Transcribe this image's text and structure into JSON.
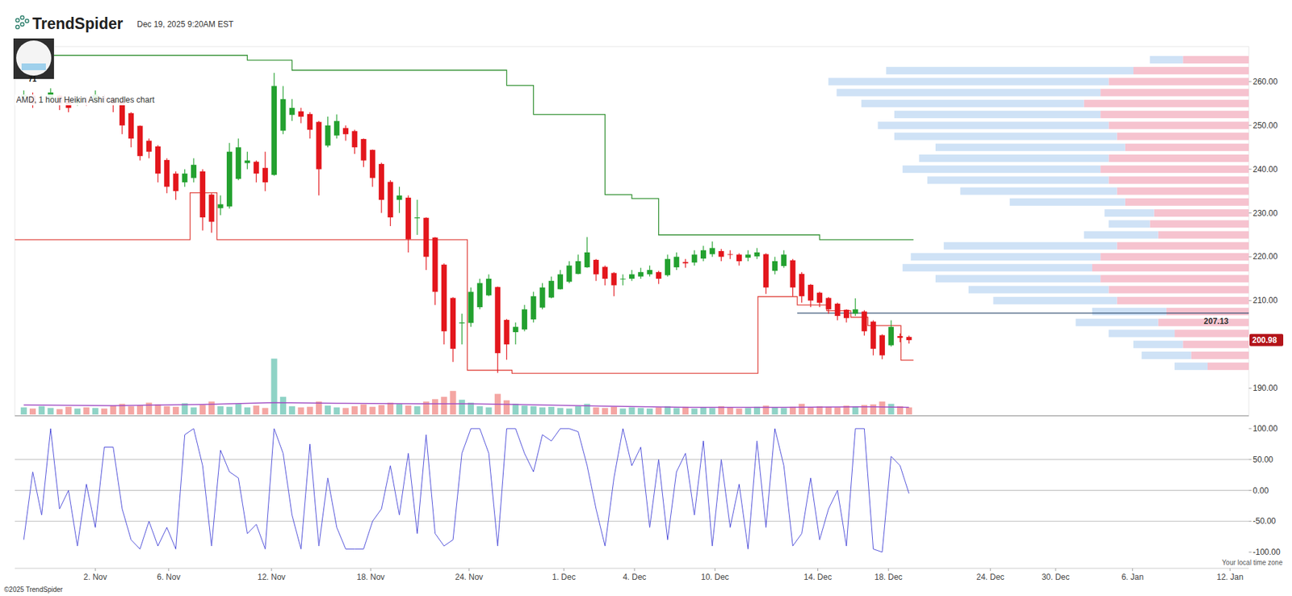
{
  "chart_data": {
    "type": "candlestick",
    "title": "AMD, 1 hour Heikin Ashi candles chart",
    "header": {
      "brand": "TrendSpider",
      "timestamp": "Dec 19, 2025 9:20AM EST",
      "avatar_label": "71"
    },
    "footer": "©2025 TrendSpider",
    "timezone_note": "Your local time zone",
    "grid": false,
    "xlim": [
      -1,
      137
    ],
    "xticks": [
      {
        "value": 8,
        "label": "2. Nov"
      },
      {
        "value": 16.2,
        "label": "6. Nov"
      },
      {
        "value": 27.7,
        "label": "12. Nov"
      },
      {
        "value": 38.8,
        "label": "18. Nov"
      },
      {
        "value": 49.8,
        "label": "24. Nov"
      },
      {
        "value": 60.4,
        "label": "1. Dec"
      },
      {
        "value": 68.3,
        "label": "4. Dec"
      },
      {
        "value": 77.3,
        "label": "10. Dec"
      },
      {
        "value": 88.8,
        "label": "14. Dec"
      },
      {
        "value": 96.7,
        "label": "18. Dec"
      },
      {
        "value": 108.1,
        "label": "24. Dec"
      },
      {
        "value": 115.4,
        "label": "30. Dec"
      },
      {
        "value": 124,
        "label": "6. Jan"
      },
      {
        "value": 134.9,
        "label": "12. Jan"
      }
    ],
    "ylim": [
      183.7,
      268
    ],
    "yticks": [
      {
        "value": 190,
        "label": "190.00"
      },
      {
        "value": 210,
        "label": "210.00"
      },
      {
        "value": 220,
        "label": "220.00"
      },
      {
        "value": 230,
        "label": "230.00"
      },
      {
        "value": 240,
        "label": "240.00"
      },
      {
        "value": 250,
        "label": "250.00"
      },
      {
        "value": 260,
        "label": "260.00"
      }
    ],
    "series": [
      {
        "type": "candlestick",
        "values": [
          [
            256.5,
            258,
            255.5,
            257
          ],
          [
            256.8,
            257.5,
            254,
            255
          ],
          [
            255.9,
            257,
            254.8,
            256
          ],
          [
            256,
            258.5,
            255.5,
            257.5
          ],
          [
            256.8,
            257,
            253.5,
            255
          ],
          [
            255.9,
            256,
            253,
            254
          ],
          [
            255,
            257,
            254.5,
            256
          ],
          [
            255.5,
            256.5,
            254.5,
            255.3
          ],
          [
            255.4,
            258,
            255,
            257
          ],
          [
            256.2,
            257,
            255,
            256
          ],
          [
            256.1,
            256.5,
            253,
            255
          ],
          [
            255.6,
            255.8,
            248,
            250
          ],
          [
            252.8,
            253,
            245,
            247
          ],
          [
            249.9,
            250,
            242,
            243
          ],
          [
            246.5,
            247,
            242.5,
            244
          ],
          [
            245.2,
            245.5,
            237,
            239
          ],
          [
            242.1,
            242.5,
            234.5,
            236
          ],
          [
            239,
            239.5,
            233,
            235
          ],
          [
            237,
            240,
            236,
            239
          ],
          [
            238,
            242.5,
            237,
            241
          ],
          [
            239.5,
            240,
            226,
            229
          ],
          [
            234.2,
            234.5,
            225.5,
            228
          ],
          [
            231.1,
            234,
            229.5,
            232
          ],
          [
            231.5,
            246,
            231,
            244
          ],
          [
            237.8,
            247,
            237.5,
            245
          ],
          [
            241.4,
            244,
            240,
            242
          ],
          [
            241.7,
            242,
            237,
            239
          ],
          [
            240.3,
            244,
            235,
            237
          ],
          [
            238.7,
            262,
            238.5,
            259
          ],
          [
            248.8,
            259,
            248,
            256
          ],
          [
            252.4,
            256,
            251,
            254
          ],
          [
            253.2,
            254,
            250.5,
            252
          ],
          [
            252.6,
            253,
            247,
            249
          ],
          [
            250.8,
            251,
            234,
            240
          ],
          [
            245.4,
            252,
            245,
            250
          ],
          [
            247.7,
            252.5,
            247,
            251
          ],
          [
            249.4,
            250,
            246.5,
            248
          ],
          [
            248.7,
            249,
            243.5,
            245
          ],
          [
            246.9,
            247,
            240.5,
            242
          ],
          [
            244.4,
            244.5,
            236,
            238
          ],
          [
            241.2,
            241.5,
            230,
            233
          ],
          [
            237.1,
            237.5,
            227,
            229
          ],
          [
            233,
            236,
            230,
            234
          ],
          [
            233.5,
            234,
            221,
            224
          ],
          [
            228.8,
            233,
            225,
            229
          ],
          [
            228.9,
            229,
            217,
            220
          ],
          [
            224.4,
            224.5,
            209,
            212
          ],
          [
            218.2,
            218.5,
            200,
            203
          ],
          [
            210.6,
            210.8,
            196,
            199
          ],
          [
            204.8,
            207,
            200,
            205
          ],
          [
            204.9,
            213,
            204,
            212
          ],
          [
            208.5,
            215,
            208,
            214
          ],
          [
            211.2,
            216,
            211,
            215
          ],
          [
            213.1,
            213.2,
            193.5,
            198
          ],
          [
            205.6,
            205.8,
            196.5,
            200
          ],
          [
            202.8,
            205,
            200,
            204
          ],
          [
            203.4,
            209,
            203,
            208
          ],
          [
            205.7,
            212,
            205,
            211
          ],
          [
            208.4,
            214,
            208,
            213
          ],
          [
            210.7,
            215.5,
            210.5,
            214.5
          ],
          [
            212.6,
            217,
            212.5,
            216
          ],
          [
            214.3,
            219,
            214,
            218
          ],
          [
            216.1,
            220.5,
            216,
            219
          ],
          [
            217.6,
            224.5,
            217.5,
            221
          ],
          [
            219.3,
            219.5,
            214.5,
            216
          ],
          [
            217.7,
            218,
            213.5,
            215
          ],
          [
            216.3,
            216.5,
            211,
            213.5
          ],
          [
            214.9,
            216,
            213.5,
            215
          ],
          [
            215,
            217,
            214.5,
            216
          ],
          [
            215.5,
            217.5,
            215,
            216.5
          ],
          [
            216,
            218,
            215.5,
            217
          ],
          [
            216.5,
            216.8,
            213.8,
            215
          ],
          [
            215.8,
            220.5,
            215.5,
            219.5
          ],
          [
            217.6,
            221,
            217,
            220
          ],
          [
            218.8,
            219.5,
            217.5,
            218.5
          ],
          [
            218.7,
            221.5,
            218,
            220.5
          ],
          [
            219.6,
            222.5,
            219,
            221.5
          ],
          [
            220.6,
            223.5,
            220,
            222
          ],
          [
            221.3,
            221.8,
            219,
            220
          ],
          [
            220.6,
            221.5,
            219.5,
            220.5
          ],
          [
            220.5,
            220.8,
            218,
            219
          ],
          [
            219.8,
            221.5,
            219,
            220.5
          ],
          [
            220.1,
            222,
            219.5,
            221
          ],
          [
            220.6,
            220.8,
            211.5,
            213
          ],
          [
            216.8,
            220,
            216,
            219
          ],
          [
            217.9,
            221.5,
            217.5,
            220.5
          ],
          [
            219.2,
            219.5,
            211,
            213
          ],
          [
            216.1,
            216.5,
            209.5,
            211
          ],
          [
            213.6,
            213.8,
            208.5,
            210
          ],
          [
            211.8,
            212,
            208.5,
            209.5
          ],
          [
            210.6,
            210.8,
            207,
            208
          ],
          [
            209.3,
            209.5,
            205.5,
            206.5
          ],
          [
            207.9,
            208,
            205,
            206
          ],
          [
            207,
            210.5,
            206.5,
            208
          ],
          [
            207.5,
            207.8,
            202,
            203
          ],
          [
            205.2,
            205.5,
            197.5,
            199
          ],
          [
            202.1,
            202.3,
            196.6,
            197.5
          ],
          [
            199.8,
            205.5,
            199.5,
            204
          ],
          [
            201.9,
            202.5,
            200.5,
            201.5
          ],
          [
            201.7,
            202,
            200.2,
            200.98
          ]
        ]
      },
      {
        "type": "line",
        "line_style": "step",
        "color": "#2f8f2f",
        "x": [
          -1,
          25,
          30,
          54,
          57,
          65,
          68,
          71,
          89,
          99.5
        ],
        "values": [
          266,
          264.9,
          262.6,
          259.1,
          252.5,
          234.2,
          233.3,
          225,
          223.9,
          223.9
        ]
      },
      {
        "type": "line",
        "line_style": "step",
        "color": "#e0403a",
        "x": [
          -1,
          18.6,
          21.6,
          49.6,
          54.6,
          82.1,
          86.5,
          89.8,
          92.5,
          94.4,
          98.1,
          99.5
        ],
        "values": [
          223.9,
          234.6,
          223.9,
          194.1,
          193.4,
          210.9,
          209,
          207.7,
          206.2,
          204.3,
          196.4,
          196.4
        ]
      }
    ],
    "levels": [
      {
        "value": 207.13,
        "x": 86.5,
        "color": "#2c4a6e"
      }
    ],
    "last_price": 200.98,
    "volume": {
      "ylim": [
        0,
        100
      ],
      "values": [
        12,
        10,
        14,
        11,
        9,
        13,
        10,
        12,
        11,
        10,
        15,
        18,
        14,
        16,
        20,
        17,
        14,
        13,
        19,
        12,
        16,
        22,
        14,
        13,
        18,
        12,
        15,
        11,
        95,
        30,
        14,
        12,
        13,
        22,
        15,
        12,
        11,
        14,
        17,
        13,
        16,
        20,
        18,
        15,
        14,
        22,
        26,
        30,
        40,
        25,
        20,
        14,
        12,
        35,
        24,
        18,
        15,
        14,
        12,
        13,
        11,
        10,
        14,
        18,
        12,
        11,
        13,
        10,
        12,
        11,
        10,
        12,
        14,
        11,
        13,
        10,
        12,
        11,
        14,
        12,
        10,
        11,
        13,
        15,
        12,
        11,
        13,
        18,
        12,
        14,
        13,
        12,
        15,
        14,
        16,
        17,
        22,
        18,
        14,
        12
      ],
      "ma": {
        "color": "#a04cc4",
        "x": [
          0,
          10,
          20,
          28,
          35,
          45,
          50,
          55,
          65,
          75,
          85,
          95,
          99
        ],
        "values": [
          16,
          15,
          17,
          20,
          19,
          18,
          18,
          17,
          14,
          12,
          12,
          13,
          12
        ]
      }
    },
    "volume_profile": {
      "xlim": [
        0,
        520
      ],
      "prices": [
        195,
        197.5,
        200,
        202.5,
        205,
        207.5,
        210,
        212.5,
        215,
        217.5,
        220,
        222.5,
        225,
        227.5,
        230,
        232.5,
        235,
        237.5,
        240,
        242.5,
        245,
        247.5,
        250,
        252.5,
        255,
        257.5,
        260,
        262.5,
        265
      ],
      "buy": [
        40,
        60,
        60,
        80,
        100,
        90,
        150,
        170,
        200,
        230,
        230,
        210,
        90,
        50,
        60,
        140,
        190,
        220,
        240,
        230,
        230,
        270,
        280,
        250,
        270,
        320,
        340,
        300,
        40
      ],
      "sell": [
        50,
        70,
        80,
        90,
        110,
        100,
        160,
        170,
        180,
        190,
        180,
        160,
        110,
        120,
        115,
        150,
        160,
        170,
        180,
        170,
        150,
        160,
        170,
        180,
        200,
        180,
        170,
        140,
        80
      ]
    },
    "oscillator": {
      "ylim": [
        -100,
        100
      ],
      "color": "#4a4ad8",
      "yticks": [
        {
          "value": 100,
          "label": "100.00"
        },
        {
          "value": 50,
          "label": "50.00"
        },
        {
          "value": 0,
          "label": "0.00"
        },
        {
          "value": -50,
          "label": "-50.00"
        },
        {
          "value": -100,
          "label": "-100.00"
        }
      ],
      "levels": [
        50,
        0,
        -50
      ],
      "values": [
        -80,
        30,
        -40,
        100,
        -30,
        0,
        -90,
        10,
        -60,
        70,
        70,
        -30,
        -80,
        -95,
        -50,
        -90,
        -60,
        -95,
        90,
        100,
        40,
        -90,
        65,
        30,
        20,
        -70,
        -55,
        -95,
        100,
        60,
        -40,
        -95,
        75,
        -90,
        20,
        -60,
        -95,
        -95,
        -95,
        -50,
        -30,
        40,
        -40,
        60,
        -70,
        90,
        -70,
        -90,
        -80,
        60,
        100,
        100,
        60,
        -90,
        100,
        100,
        60,
        30,
        90,
        80,
        100,
        100,
        95,
        40,
        -30,
        -90,
        20,
        100,
        40,
        70,
        -60,
        50,
        -80,
        30,
        60,
        -40,
        80,
        -90,
        50,
        -60,
        10,
        -95,
        80,
        -60,
        100,
        40,
        -90,
        -70,
        20,
        -80,
        -30,
        0,
        -90,
        100,
        100,
        -95,
        -100,
        55,
        40,
        -5
      ]
    }
  }
}
